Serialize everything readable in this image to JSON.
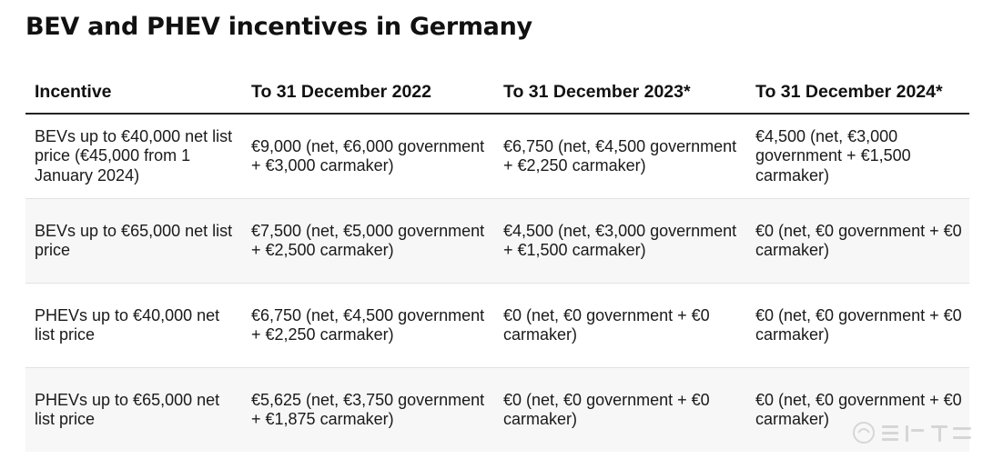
{
  "page": {
    "title": "BEV and PHEV incentives in Germany"
  },
  "table": {
    "headers": [
      "Incentive",
      "To 31 December 2022",
      "To 31 December 2023*",
      "To 31 December 2024*"
    ],
    "rows": [
      {
        "incentive": "BEVs up to €40,000 net list price (€45,000 from 1 January 2024)",
        "dec2022": "€9,000 (net, €6,000 government + €3,000 carmaker)",
        "dec2023": "€6,750 (net, €4,500 government + €2,250 carmaker)",
        "dec2024": "€4,500 (net, €3,000 government + €1,500 carmaker)"
      },
      {
        "incentive": "BEVs up to €65,000 net list price",
        "dec2022": "€7,500 (net, €5,000 government + €2,500 carmaker)",
        "dec2023": "€4,500 (net, €3,000 government + €1,500 carmaker)",
        "dec2024": "€0 (net, €0 government + €0 carmaker)"
      },
      {
        "incentive": "PHEVs up to €40,000 net list price",
        "dec2022": "€6,750 (net, €4,500 government + €2,250 carmaker)",
        "dec2023": "€0 (net, €0 government + €0 carmaker)",
        "dec2024": "€0 (net, €0 government + €0 carmaker)"
      },
      {
        "incentive": "PHEVs up to €65,000 net list price",
        "dec2022": "€5,625 (net, €3,750 government + €1,875 carmaker)",
        "dec2023": "€0 (net, €0 government + €0 carmaker)",
        "dec2024": "€0 (net, €0 government + €0 carmaker)"
      }
    ]
  },
  "colors": {
    "row_alt_background": "#f7f7f7",
    "header_rule": "#222222"
  }
}
